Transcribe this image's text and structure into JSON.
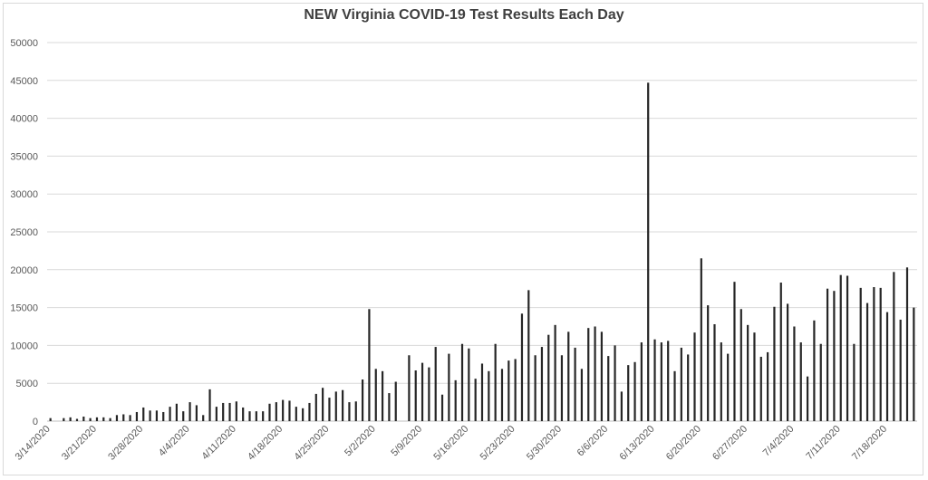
{
  "chart_data": {
    "type": "bar",
    "title": "NEW Virginia COVID-19 Test Results Each Day",
    "xlabel": "",
    "ylabel": "",
    "ylim": [
      0,
      50000
    ],
    "yticks": [
      0,
      5000,
      10000,
      15000,
      20000,
      25000,
      30000,
      35000,
      40000,
      45000,
      50000
    ],
    "grid": "horizontal",
    "legend": "none",
    "bar_color": "#262626",
    "grid_color": "#d9d9d9",
    "x_tick_labels": [
      "3/14/2020",
      "3/21/2020",
      "3/28/2020",
      "4/4/2020",
      "4/11/2020",
      "4/18/2020",
      "4/25/2020",
      "5/2/2020",
      "5/9/2020",
      "5/16/2020",
      "5/23/2020",
      "5/30/2020",
      "6/6/2020",
      "6/13/2020",
      "6/20/2020",
      "6/27/2020",
      "7/4/2020",
      "7/11/2020",
      "7/18/2020"
    ],
    "x_start": "3/14/2020",
    "values": [
      400,
      0,
      400,
      500,
      300,
      600,
      400,
      500,
      500,
      400,
      800,
      900,
      800,
      1200,
      1800,
      1400,
      1400,
      1200,
      1900,
      2300,
      1300,
      2500,
      2100,
      800,
      4200,
      1900,
      2400,
      2400,
      2600,
      1800,
      1300,
      1300,
      1300,
      2300,
      2500,
      2800,
      2700,
      1900,
      1700,
      2400,
      3600,
      4400,
      3100,
      3900,
      4100,
      2500,
      2600,
      5500,
      14800,
      6900,
      6600,
      3700,
      5200,
      0,
      8700,
      6700,
      7700,
      7100,
      9800,
      3500,
      8900,
      5400,
      10200,
      9600,
      5600,
      7600,
      6600,
      10200,
      6900,
      8000,
      8200,
      14200,
      17300,
      8700,
      9800,
      11400,
      12700,
      8700,
      11800,
      9700,
      6900,
      12300,
      12500,
      11800,
      8600,
      10000,
      3900,
      7400,
      7800,
      10400,
      44700,
      10800,
      10400,
      10600,
      6600,
      9700,
      8800,
      11700,
      21500,
      15300,
      12800,
      10400,
      8900,
      18400,
      14800,
      12700,
      11700,
      8500,
      9100,
      15100,
      18300,
      15500,
      12500,
      10400,
      5900,
      13300,
      10200,
      17500,
      17200,
      19300,
      19200,
      10200,
      17600,
      15600,
      17700,
      17600,
      14400,
      19700,
      13400,
      20300,
      15000
    ]
  }
}
